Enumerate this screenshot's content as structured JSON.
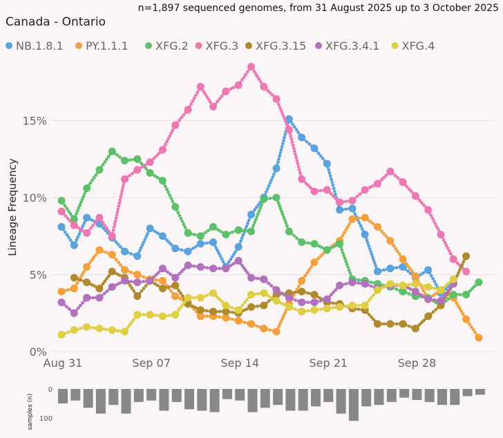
{
  "chart_data": {
    "type": "line",
    "title": "Canada - Ontario",
    "subtitle": "n=1,897 sequenced genomes, from 31 August 2025 up to 3 October 2025",
    "ylabel": "Lineage Frequency",
    "xlabel": "",
    "ylim": [
      0,
      19
    ],
    "yticks": [
      {
        "value": 0,
        "label": "0%"
      },
      {
        "value": 5,
        "label": "5%"
      },
      {
        "value": 10,
        "label": "10%"
      },
      {
        "value": 15,
        "label": "15%"
      }
    ],
    "xticks": [
      {
        "day": 0,
        "label": "Aug 31"
      },
      {
        "day": 7,
        "label": "Sep 07"
      },
      {
        "day": 14,
        "label": "Sep 14"
      },
      {
        "day": 21,
        "label": "Sep 21"
      },
      {
        "day": 28,
        "label": "Sep 28"
      }
    ],
    "x_days": [
      0,
      1,
      2,
      3,
      4,
      5,
      6,
      7,
      8,
      9,
      10,
      11,
      12,
      13,
      14,
      15,
      16,
      17,
      18,
      19,
      20,
      21,
      22,
      23,
      24,
      25,
      26,
      27,
      28,
      29,
      30,
      31,
      32,
      33
    ],
    "series": [
      {
        "name": "NB.1.8.1",
        "color": "#5ba3dc",
        "values": [
          8.1,
          6.9,
          8.7,
          8.3,
          7.4,
          6.5,
          6.2,
          8.0,
          7.5,
          6.7,
          6.5,
          7.0,
          7.1,
          5.5,
          6.8,
          8.9,
          10.0,
          11.9,
          15.1,
          13.9,
          13.2,
          12.2,
          9.2,
          9.3,
          7.6,
          5.2,
          5.4,
          5.5,
          4.8,
          5.3,
          3.8,
          4.5,
          null,
          null
        ]
      },
      {
        "name": "PY.1.1.1",
        "color": "#f5a03c",
        "values": [
          3.9,
          4.1,
          5.5,
          6.6,
          6.3,
          5.3,
          5.0,
          4.7,
          4.6,
          3.6,
          3.2,
          2.3,
          2.3,
          2.2,
          2.0,
          1.8,
          1.5,
          1.3,
          3.1,
          4.6,
          5.8,
          6.6,
          7.2,
          8.6,
          8.7,
          8.1,
          7.2,
          6.0,
          4.9,
          3.4,
          4.0,
          3.5,
          2.1,
          0.9
        ]
      },
      {
        "name": "XFG.2",
        "color": "#5cc16a",
        "values": [
          9.8,
          8.6,
          10.6,
          11.8,
          13.0,
          12.4,
          12.5,
          11.6,
          11.1,
          9.4,
          7.7,
          7.5,
          8.1,
          7.6,
          7.9,
          7.8,
          9.9,
          10.0,
          7.8,
          7.1,
          7.0,
          6.6,
          7.0,
          4.7,
          4.6,
          4.4,
          4.2,
          3.9,
          3.6,
          3.5,
          3.0,
          3.7,
          3.7,
          4.5
        ]
      },
      {
        "name": "XFG.3",
        "color": "#ee78b2",
        "values": [
          9.1,
          8.2,
          7.7,
          8.7,
          7.5,
          11.2,
          11.8,
          12.3,
          13.1,
          14.7,
          15.7,
          17.2,
          15.9,
          16.9,
          17.3,
          18.5,
          17.2,
          16.4,
          14.4,
          11.2,
          10.4,
          10.5,
          9.7,
          9.8,
          10.5,
          10.9,
          11.7,
          11.0,
          10.1,
          9.2,
          7.6,
          6.0,
          5.2,
          null
        ]
      },
      {
        "name": "XFG.3.15",
        "color": "#b08a2e",
        "values": [
          null,
          4.8,
          4.5,
          4.1,
          5.2,
          4.8,
          3.6,
          4.6,
          4.1,
          4.3,
          3.1,
          2.7,
          2.6,
          2.6,
          2.5,
          2.9,
          3.0,
          3.7,
          3.8,
          3.9,
          3.7,
          3.2,
          3.1,
          2.8,
          2.7,
          1.8,
          1.8,
          1.8,
          1.5,
          2.3,
          3.0,
          4.4,
          6.2,
          null
        ]
      },
      {
        "name": "XFG.3.4.1",
        "color": "#b171bd",
        "values": [
          3.2,
          2.5,
          3.5,
          3.5,
          4.2,
          4.6,
          4.5,
          4.6,
          5.4,
          4.8,
          5.6,
          5.5,
          5.4,
          5.4,
          5.9,
          4.8,
          4.7,
          4.0,
          3.5,
          3.2,
          3.2,
          3.4,
          4.3,
          4.5,
          4.4,
          4.1,
          4.3,
          4.3,
          3.9,
          3.4,
          3.3,
          4.4,
          null,
          null
        ]
      },
      {
        "name": "XFG.4",
        "color": "#e0cf46",
        "values": [
          1.1,
          1.4,
          1.6,
          1.5,
          1.4,
          1.3,
          2.4,
          2.4,
          2.3,
          2.4,
          3.5,
          3.5,
          3.8,
          3.0,
          2.7,
          3.7,
          3.8,
          3.3,
          2.9,
          2.6,
          2.7,
          2.8,
          2.9,
          3.0,
          3.0,
          4.0,
          4.4,
          4.3,
          4.4,
          4.2,
          4.0,
          4.7,
          null,
          null
        ]
      }
    ],
    "samples": {
      "label": "samples (n)",
      "ticks": [
        {
          "value": 0,
          "label": "0"
        },
        {
          "value": 100,
          "label": "100"
        }
      ],
      "ylim": [
        0,
        115
      ],
      "values": [
        50,
        40,
        65,
        85,
        55,
        85,
        45,
        40,
        75,
        45,
        70,
        75,
        80,
        35,
        40,
        80,
        65,
        55,
        75,
        75,
        60,
        45,
        85,
        110,
        60,
        55,
        45,
        30,
        38,
        45,
        55,
        55,
        25,
        20
      ]
    }
  }
}
